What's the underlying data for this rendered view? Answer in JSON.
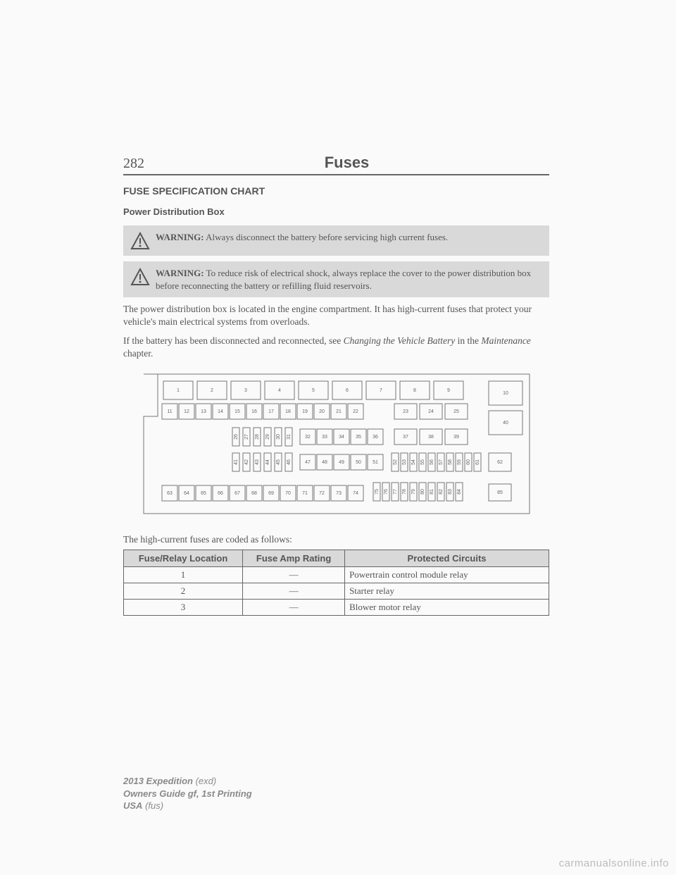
{
  "header": {
    "page_number": "282",
    "chapter": "Fuses"
  },
  "section_title": "FUSE SPECIFICATION CHART",
  "subsection_title": "Power Distribution Box",
  "warnings": [
    {
      "label": "WARNING:",
      "text": " Always disconnect the battery before servicing high current fuses."
    },
    {
      "label": "WARNING:",
      "text": " To reduce risk of electrical shock, always replace the cover to the power distribution box before reconnecting the battery or refilling fluid reservoirs."
    }
  ],
  "para1": "The power distribution box is located in the engine compartment. It has high-current fuses that protect your vehicle's main electrical systems from overloads.",
  "para2a": "If the battery has been disconnected and reconnected, see ",
  "para2_ital1": "Changing the Vehicle Battery",
  "para2b": " in the ",
  "para2_ital2": "Maintenance",
  "para2c": " chapter.",
  "caption": "The high-current fuses are coded as follows:",
  "table_headers": [
    "Fuse/Relay Location",
    "Fuse Amp Rating",
    "Protected Circuits"
  ],
  "table_rows": [
    {
      "loc": "1",
      "amp": "—",
      "circ": "Powertrain control module relay"
    },
    {
      "loc": "2",
      "amp": "—",
      "circ": "Starter relay"
    },
    {
      "loc": "3",
      "amp": "—",
      "circ": "Blower motor relay"
    }
  ],
  "footer": {
    "line1a": "2013 Expedition",
    "line1b": " (exd)",
    "line2": "Owners Guide gf, 1st Printing",
    "line3a": "USA",
    "line3b": " (fus)"
  },
  "watermark": "carmanualsonline.info",
  "diagram": {
    "row1_large": [
      1,
      2,
      3,
      4,
      5,
      6,
      7,
      8,
      9
    ],
    "box10": 10,
    "row2": [
      11,
      12,
      13,
      14,
      15,
      16,
      17,
      18,
      19,
      20,
      21,
      22
    ],
    "row2b": [
      23,
      24,
      25
    ],
    "box40": 40,
    "row3_thin": [
      26,
      27,
      28,
      29,
      30,
      31
    ],
    "row3_sq": [
      32,
      33,
      34,
      35,
      36
    ],
    "row3b": [
      37,
      38,
      39
    ],
    "row4_thin": [
      41,
      42,
      43,
      44,
      45,
      46
    ],
    "row4_sq": [
      47,
      48,
      49,
      50,
      51
    ],
    "row4_thin2": [
      52,
      53,
      54,
      55,
      56,
      57,
      58,
      59,
      60,
      61
    ],
    "box62": 62,
    "row5_sq": [
      63,
      64,
      65,
      66,
      67,
      68,
      69,
      70,
      71,
      72,
      73,
      74
    ],
    "row5_thin": [
      75,
      76,
      77,
      78,
      79,
      80,
      81,
      82,
      83,
      84
    ],
    "box85": 85
  }
}
